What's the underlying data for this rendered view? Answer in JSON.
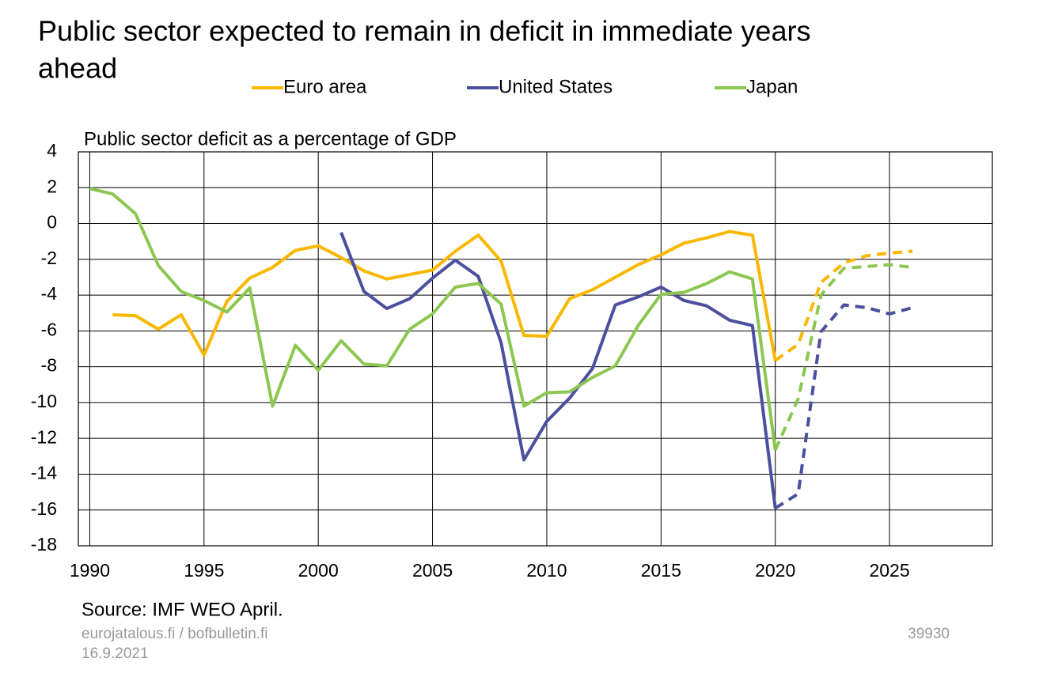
{
  "chart_data": {
    "type": "line",
    "title": [
      "Public sector expected to remain in deficit in immediate years",
      "ahead"
    ],
    "y_label": "Public sector deficit as a percentage of GDP",
    "source": "Source: IMF WEO April.",
    "credit": "eurojatalous.fi / bofbulletin.fi",
    "date": "16.9.2021",
    "chart_id": "39930",
    "x": [
      1990,
      1991,
      1992,
      1993,
      1994,
      1995,
      1996,
      1997,
      1998,
      1999,
      2000,
      2001,
      2002,
      2003,
      2004,
      2005,
      2006,
      2007,
      2008,
      2009,
      2010,
      2011,
      2012,
      2013,
      2014,
      2015,
      2016,
      2017,
      2018,
      2019,
      2020,
      2021,
      2022,
      2023,
      2024,
      2025,
      2026
    ],
    "dashed_from": 2020,
    "series": [
      {
        "name": "Euro area",
        "color": "#f9b800",
        "values": [
          null,
          -5.1,
          -5.15,
          -5.9,
          -5.1,
          -7.35,
          -4.35,
          -3.05,
          -2.45,
          -1.5,
          -1.25,
          -1.9,
          -2.65,
          -3.1,
          -2.85,
          -2.6,
          -1.55,
          -0.65,
          -2.1,
          -6.25,
          -6.3,
          -4.2,
          -3.7,
          -3.0,
          -2.3,
          -1.75,
          -1.1,
          -0.8,
          -0.45,
          -0.65,
          -7.65,
          -6.75,
          -3.3,
          -2.2,
          -1.8,
          -1.65,
          -1.55
        ]
      },
      {
        "name": "United States",
        "color": "#4b4f9e",
        "values": [
          null,
          null,
          null,
          null,
          null,
          null,
          null,
          null,
          null,
          null,
          null,
          -0.5,
          -3.8,
          -4.75,
          -4.2,
          -3.05,
          -2.05,
          -2.95,
          -6.65,
          -13.2,
          -11.05,
          -9.75,
          -8.1,
          -4.55,
          -4.1,
          -3.55,
          -4.3,
          -4.6,
          -5.4,
          -5.7,
          -15.9,
          -15.1,
          -6.05,
          -4.55,
          -4.7,
          -5.05,
          -4.7
        ]
      },
      {
        "name": "Japan",
        "color": "#8cc751",
        "values": [
          1.95,
          1.65,
          0.55,
          -2.35,
          -3.8,
          -4.3,
          -4.95,
          -3.6,
          -10.2,
          -6.8,
          -8.2,
          -6.55,
          -7.85,
          -7.95,
          -5.9,
          -5.05,
          -3.55,
          -3.35,
          -4.5,
          -10.2,
          -9.45,
          -9.4,
          -8.6,
          -7.95,
          -5.7,
          -3.95,
          -3.85,
          -3.35,
          -2.7,
          -3.1,
          -12.65,
          -9.8,
          -4.0,
          -2.5,
          -2.4,
          -2.3,
          -2.45
        ]
      }
    ],
    "xlim": [
      1989.5,
      2029.5
    ],
    "xticks": [
      1990,
      1995,
      2000,
      2005,
      2010,
      2015,
      2020,
      2025
    ],
    "ylim": [
      -18,
      4
    ],
    "yticks": [
      -18,
      -16,
      -14,
      -12,
      -10,
      -8,
      -6,
      -4,
      -2,
      0,
      2,
      4
    ],
    "grid": true
  }
}
